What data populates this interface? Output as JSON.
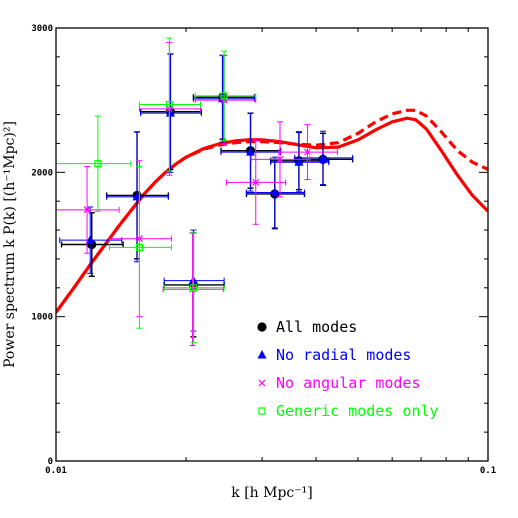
{
  "chart_data": {
    "type": "scatter",
    "title": "",
    "xlabel": "k [h Mpc⁻¹]",
    "ylabel": "Power spectrum k P(k) [(h⁻¹Mpc)²]",
    "xscale": "log",
    "xlim": [
      0.01,
      0.1
    ],
    "ylim": [
      0,
      3000
    ],
    "x_ticks": [
      {
        "v": 0.01,
        "label": "0.01"
      },
      {
        "v": 0.1,
        "label": "0.1"
      }
    ],
    "y_ticks": [
      {
        "v": 0,
        "label": "0"
      },
      {
        "v": 1000,
        "label": "1000"
      },
      {
        "v": 2000,
        "label": "2000"
      },
      {
        "v": 3000,
        "label": "3000"
      }
    ],
    "legend_position": "bottom-right",
    "series": [
      {
        "name": "All modes",
        "color": "#000000",
        "marker": "circle",
        "points": [
          {
            "x": 0.0121,
            "y": 1500,
            "yerr": 220,
            "xlo": 0.0103,
            "xhi": 0.0143
          },
          {
            "x": 0.0154,
            "y": 1840,
            "yerr": 440,
            "xlo": 0.0131,
            "xhi": 0.0182
          },
          {
            "x": 0.0184,
            "y": 2420,
            "yerr": 400,
            "xlo": 0.0157,
            "xhi": 0.0217
          },
          {
            "x": 0.0208,
            "y": 1220,
            "yerr": 360,
            "xlo": 0.0178,
            "xhi": 0.0245
          },
          {
            "x": 0.0243,
            "y": 2520,
            "yerr": 290,
            "xlo": 0.0208,
            "xhi": 0.0288
          },
          {
            "x": 0.0282,
            "y": 2150,
            "yerr": 260,
            "xlo": 0.0241,
            "xhi": 0.0331
          },
          {
            "x": 0.0321,
            "y": 1850,
            "yerr": 240,
            "xlo": 0.0276,
            "xhi": 0.0376
          },
          {
            "x": 0.0365,
            "y": 2080,
            "yerr": 200,
            "xlo": 0.0314,
            "xhi": 0.0428
          },
          {
            "x": 0.0415,
            "y": 2090,
            "yerr": 180,
            "xlo": 0.0357,
            "xhi": 0.0486
          }
        ]
      },
      {
        "name": "No radial modes",
        "color": "#0000ff",
        "marker": "triangle",
        "points": [
          {
            "x": 0.012,
            "y": 1530,
            "yerr": 230,
            "xlo": 0.0102,
            "xhi": 0.0142
          },
          {
            "x": 0.0154,
            "y": 1830,
            "yerr": 450,
            "xlo": 0.0131,
            "xhi": 0.0182
          },
          {
            "x": 0.0184,
            "y": 2410,
            "yerr": 410,
            "xlo": 0.0157,
            "xhi": 0.0217
          },
          {
            "x": 0.0208,
            "y": 1250,
            "yerr": 350,
            "xlo": 0.0178,
            "xhi": 0.0245
          },
          {
            "x": 0.0243,
            "y": 2510,
            "yerr": 300,
            "xlo": 0.0208,
            "xhi": 0.0288
          },
          {
            "x": 0.0282,
            "y": 2140,
            "yerr": 270,
            "xlo": 0.0241,
            "xhi": 0.0331
          },
          {
            "x": 0.0321,
            "y": 1860,
            "yerr": 245,
            "xlo": 0.0276,
            "xhi": 0.0376
          },
          {
            "x": 0.0365,
            "y": 2070,
            "yerr": 205,
            "xlo": 0.0314,
            "xhi": 0.0428
          },
          {
            "x": 0.0415,
            "y": 2100,
            "yerr": 185,
            "xlo": 0.0357,
            "xhi": 0.0486
          }
        ]
      },
      {
        "name": "No angular modes",
        "color": "#ff00ff",
        "marker": "cross",
        "points": [
          {
            "x": 0.0118,
            "y": 1740,
            "yerr": 300,
            "xlo": 0.01,
            "xhi": 0.014
          },
          {
            "x": 0.0156,
            "y": 1540,
            "yerr": 540,
            "xlo": 0.0133,
            "xhi": 0.0185
          },
          {
            "x": 0.0183,
            "y": 2440,
            "yerr": 460,
            "xlo": 0.0156,
            "xhi": 0.0216
          },
          {
            "x": 0.0207,
            "y": 1190,
            "yerr": 390,
            "xlo": 0.0177,
            "xhi": 0.0244
          },
          {
            "x": 0.0245,
            "y": 2500,
            "yerr": 310,
            "xlo": 0.021,
            "xhi": 0.029
          },
          {
            "x": 0.029,
            "y": 1930,
            "yerr": 290,
            "xlo": 0.0248,
            "xhi": 0.034
          },
          {
            "x": 0.033,
            "y": 2090,
            "yerr": 260,
            "xlo": 0.0283,
            "xhi": 0.0387
          },
          {
            "x": 0.0382,
            "y": 2140,
            "yerr": 190,
            "xlo": 0.0328,
            "xhi": 0.0448
          }
        ]
      },
      {
        "name": "Generic modes only",
        "color": "#00ff00",
        "marker": "square",
        "points": [
          {
            "x": 0.0125,
            "y": 2060,
            "yerr": 330,
            "xlo": 0.01,
            "xhi": 0.0149
          },
          {
            "x": 0.0156,
            "y": 1480,
            "yerr": 560,
            "xlo": 0.0133,
            "xhi": 0.0185
          },
          {
            "x": 0.0183,
            "y": 2470,
            "yerr": 460,
            "xlo": 0.0156,
            "xhi": 0.0216
          },
          {
            "x": 0.0208,
            "y": 1200,
            "yerr": 380,
            "xlo": 0.0178,
            "xhi": 0.0245
          },
          {
            "x": 0.0245,
            "y": 2530,
            "yerr": 310,
            "xlo": 0.021,
            "xhi": 0.029
          }
        ]
      }
    ],
    "curves": [
      {
        "style": "solid",
        "color": "#ff0000",
        "x": [
          0.01,
          0.011,
          0.012,
          0.013,
          0.014,
          0.015,
          0.016,
          0.017,
          0.018,
          0.019,
          0.02,
          0.022,
          0.024,
          0.026,
          0.028,
          0.03,
          0.033,
          0.036,
          0.04,
          0.045,
          0.05,
          0.055,
          0.06,
          0.065,
          0.068,
          0.072,
          0.078,
          0.085,
          0.092,
          0.1
        ],
        "y": [
          1030,
          1200,
          1360,
          1500,
          1630,
          1745,
          1850,
          1935,
          2005,
          2060,
          2105,
          2165,
          2200,
          2218,
          2226,
          2225,
          2212,
          2192,
          2170,
          2175,
          2225,
          2295,
          2350,
          2375,
          2365,
          2300,
          2150,
          1980,
          1840,
          1730
        ]
      },
      {
        "style": "dashed",
        "color": "#ff0000",
        "x": [
          0.01,
          0.011,
          0.012,
          0.013,
          0.014,
          0.015,
          0.016,
          0.017,
          0.018,
          0.019,
          0.02,
          0.022,
          0.024,
          0.026,
          0.028,
          0.03,
          0.033,
          0.036,
          0.04,
          0.045,
          0.05,
          0.055,
          0.06,
          0.065,
          0.068,
          0.072,
          0.078,
          0.085,
          0.092,
          0.1
        ],
        "y": [
          1030,
          1200,
          1360,
          1500,
          1630,
          1745,
          1850,
          1935,
          2005,
          2060,
          2105,
          2160,
          2190,
          2205,
          2212,
          2212,
          2206,
          2195,
          2188,
          2205,
          2270,
          2350,
          2405,
          2430,
          2430,
          2390,
          2280,
          2150,
          2070,
          2020
        ]
      }
    ]
  }
}
